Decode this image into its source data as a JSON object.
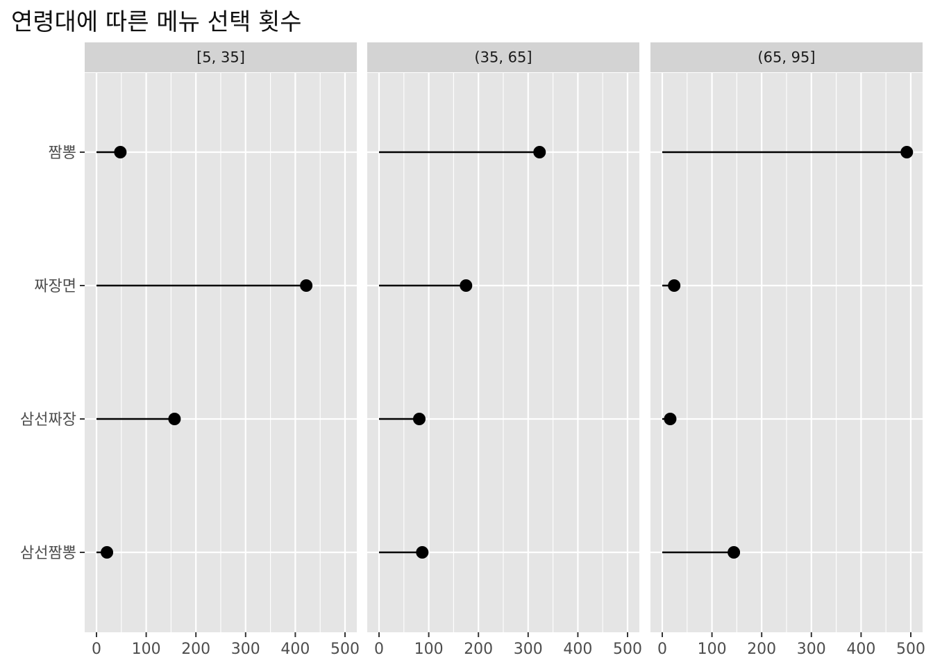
{
  "chart_data": {
    "type": "lollipop",
    "title": "연령대에 따른 메뉴 선택 횟수",
    "xlabel": "",
    "ylabel": "",
    "xlim": [
      0,
      500
    ],
    "x_ticks": [
      0,
      100,
      200,
      300,
      400,
      500
    ],
    "categories": [
      "짬뽕",
      "짜장면",
      "삼선짜장",
      "삼선짬뽕"
    ],
    "facets": [
      {
        "label": "[5, 35]",
        "values": [
          48,
          422,
          157,
          21
        ]
      },
      {
        "label": "(35, 65]",
        "values": [
          323,
          175,
          81,
          87
        ]
      },
      {
        "label": "(65, 95]",
        "values": [
          492,
          24,
          16,
          144
        ]
      }
    ],
    "colors": {
      "panel": "#e5e5e5",
      "strip": "#d3d3d3",
      "grid": "#ffffff",
      "mark": "#000000"
    }
  }
}
